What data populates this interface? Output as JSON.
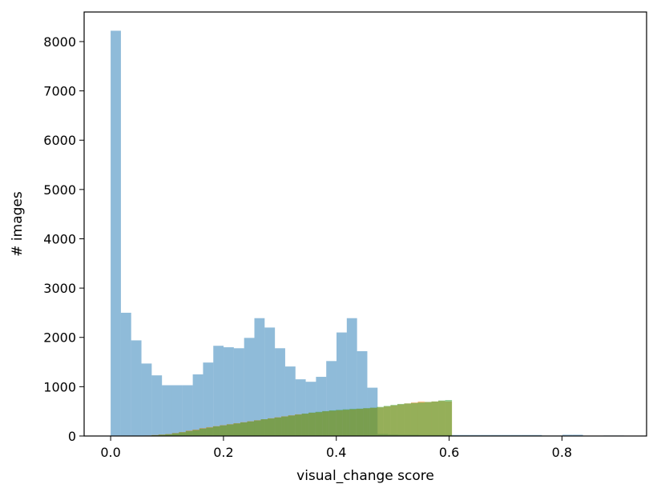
{
  "chart_data": {
    "type": "bar",
    "xlabel": "visual_change score",
    "ylabel": "# images",
    "xlim": [
      -0.047,
      0.95
    ],
    "ylim": [
      0,
      8600
    ],
    "grid": false,
    "legend": "none",
    "xticks": [
      {
        "value": 0.0,
        "label": "0.0"
      },
      {
        "value": 0.2,
        "label": "0.2"
      },
      {
        "value": 0.4,
        "label": "0.4"
      },
      {
        "value": 0.6,
        "label": "0.6"
      },
      {
        "value": 0.8,
        "label": "0.8"
      }
    ],
    "yticks": [
      {
        "value": 0,
        "label": "0"
      },
      {
        "value": 1000,
        "label": "1000"
      },
      {
        "value": 2000,
        "label": "2000"
      },
      {
        "value": 3000,
        "label": "3000"
      },
      {
        "value": 4000,
        "label": "4000"
      },
      {
        "value": 5000,
        "label": "5000"
      },
      {
        "value": 6000,
        "label": "6000"
      },
      {
        "value": 7000,
        "label": "7000"
      },
      {
        "value": 8000,
        "label": "8000"
      }
    ],
    "series": [
      {
        "color": "#1f77b4",
        "opacity": 0.5,
        "bin_start": 0.0,
        "bin_width": 0.0182,
        "values": [
          8220,
          2500,
          1940,
          1470,
          1230,
          1030,
          1030,
          1030,
          1250,
          1490,
          1830,
          1800,
          1780,
          1990,
          2390,
          2200,
          1780,
          1410,
          1150,
          1100,
          1200,
          1520,
          2100,
          2390,
          1720,
          980,
          40,
          30,
          25,
          25,
          20,
          20,
          20,
          20,
          20,
          20,
          20,
          20,
          20,
          20,
          20,
          20,
          10,
          10,
          25,
          25,
          0,
          0,
          10,
          10
        ]
      },
      {
        "color": "#ff7f0e",
        "opacity": 0.5,
        "bin_start": 0.0,
        "bin_width": 0.0121,
        "values": [
          0,
          0,
          0,
          0,
          2,
          10,
          20,
          30,
          40,
          60,
          80,
          110,
          130,
          160,
          180,
          200,
          220,
          240,
          260,
          280,
          300,
          320,
          340,
          360,
          380,
          400,
          420,
          440,
          450,
          470,
          480,
          500,
          510,
          520,
          530,
          540,
          550,
          560,
          570,
          580,
          600,
          620,
          640,
          660,
          680,
          700,
          690,
          700,
          710,
          700
        ]
      },
      {
        "color": "#2ca02c",
        "opacity": 0.5,
        "bin_start": 0.0,
        "bin_width": 0.0121,
        "values": [
          0,
          0,
          0,
          0,
          0,
          5,
          15,
          25,
          35,
          55,
          75,
          100,
          120,
          150,
          170,
          195,
          215,
          235,
          255,
          275,
          295,
          315,
          340,
          355,
          375,
          395,
          415,
          435,
          455,
          475,
          490,
          505,
          520,
          530,
          540,
          550,
          555,
          565,
          575,
          590,
          610,
          630,
          650,
          660,
          670,
          680,
          690,
          700,
          720,
          730
        ]
      }
    ]
  }
}
